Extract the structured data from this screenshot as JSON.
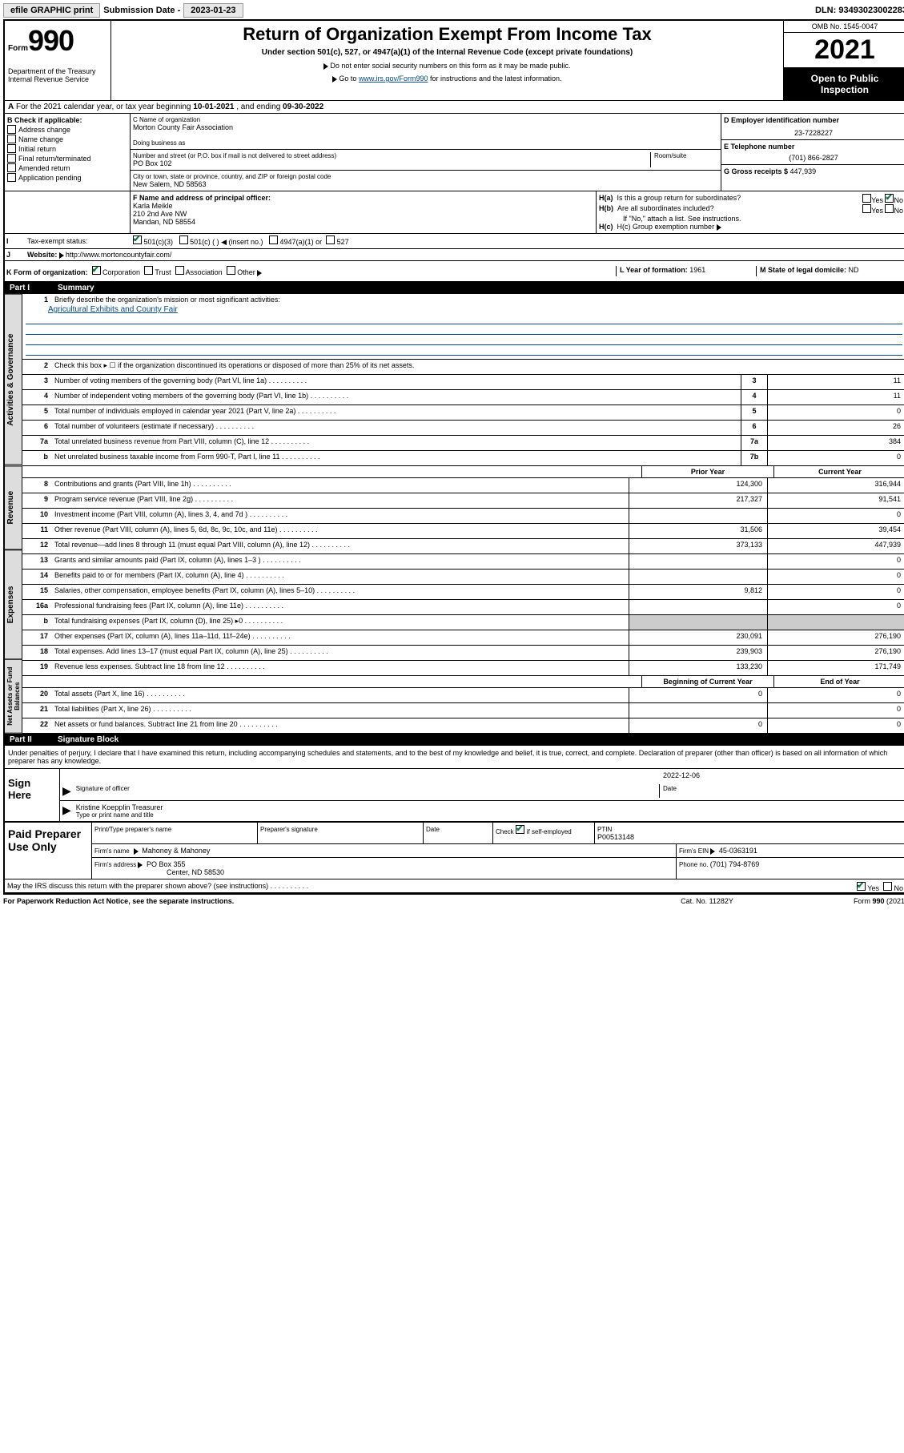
{
  "topbar": {
    "efile": "efile GRAPHIC print",
    "submission_label": "Submission Date - ",
    "submission_date": "2023-01-23",
    "dln_label": "DLN: ",
    "dln": "93493023002283"
  },
  "header": {
    "form_word": "Form",
    "form_num": "990",
    "dept": "Department of the Treasury\nInternal Revenue Service",
    "title": "Return of Organization Exempt From Income Tax",
    "subtitle": "Under section 501(c), 527, or 4947(a)(1) of the Internal Revenue Code (except private foundations)",
    "instr1": "Do not enter social security numbers on this form as it may be made public.",
    "instr2_pre": "Go to ",
    "instr2_link": "www.irs.gov/Form990",
    "instr2_post": " for instructions and the latest information.",
    "omb": "OMB No. 1545-0047",
    "year": "2021",
    "inspection": "Open to Public Inspection"
  },
  "line_a": {
    "prefix": "A",
    "text": "For the 2021 calendar year, or tax year beginning ",
    "begin": "10-01-2021",
    "mid": " , and ending ",
    "end": "09-30-2022"
  },
  "b": {
    "header": "B Check if applicable:",
    "items": [
      "Address change",
      "Name change",
      "Initial return",
      "Final return/terminated",
      "Amended return",
      "Application pending"
    ]
  },
  "c": {
    "name_label": "C Name of organization",
    "name": "Morton County Fair Association",
    "dba_label": "Doing business as",
    "street_label": "Number and street (or P.O. box if mail is not delivered to street address)",
    "room_label": "Room/suite",
    "street": "PO Box 102",
    "city_label": "City or town, state or province, country, and ZIP or foreign postal code",
    "city": "New Salem, ND  58563"
  },
  "d": {
    "label": "D Employer identification number",
    "ein": "23-7228227",
    "e_label": "E Telephone number",
    "phone": "(701) 866-2827",
    "g_label": "G Gross receipts $ ",
    "gross": "447,939"
  },
  "f": {
    "label": "F  Name and address of principal officer:",
    "name": "Karla Meikle",
    "addr1": "210 2nd Ave NW",
    "addr2": "Mandan, ND  58554"
  },
  "h": {
    "a_label": "H(a)  Is this a group return for subordinates?",
    "yes": "Yes",
    "no": "No",
    "b_label": "H(b)  Are all subordinates included?",
    "b_note": "If \"No,\" attach a list. See instructions.",
    "c_label": "H(c)  Group exemption number "
  },
  "i": {
    "label": "I",
    "text": "Tax-exempt status:",
    "opts": [
      "501(c)(3)",
      "501(c) (  ) ◀ (insert no.)",
      "4947(a)(1) or",
      "527"
    ]
  },
  "j": {
    "label": "J",
    "text": "Website: ",
    "url": "http://www.mortoncountyfair.com/"
  },
  "k": {
    "label": "K Form of organization:",
    "opts": [
      "Corporation",
      "Trust",
      "Association",
      "Other"
    ]
  },
  "l": {
    "label": "L Year of formation: ",
    "val": "1961"
  },
  "m": {
    "label": "M State of legal domicile: ",
    "val": "ND"
  },
  "part1": {
    "num": "Part I",
    "title": "Summary",
    "line1_label": "Briefly describe the organization's mission or most significant activities:",
    "line1_text": "Agricultural Exhibits and County Fair",
    "line2": "Check this box ▸ ☐  if the organization discontinued its operations or disposed of more than 25% of its net assets.",
    "rows_top": [
      {
        "n": "3",
        "label": "Number of voting members of the governing body (Part VI, line 1a)",
        "box": "3",
        "val": "11"
      },
      {
        "n": "4",
        "label": "Number of independent voting members of the governing body (Part VI, line 1b)",
        "box": "4",
        "val": "11"
      },
      {
        "n": "5",
        "label": "Total number of individuals employed in calendar year 2021 (Part V, line 2a)",
        "box": "5",
        "val": "0"
      },
      {
        "n": "6",
        "label": "Total number of volunteers (estimate if necessary)",
        "box": "6",
        "val": "26"
      },
      {
        "n": "7a",
        "label": "Total unrelated business revenue from Part VIII, column (C), line 12",
        "box": "7a",
        "val": "384"
      },
      {
        "n": "b",
        "label": "Net unrelated business taxable income from Form 990-T, Part I, line 11",
        "box": "7b",
        "val": "0"
      }
    ],
    "col_heads": {
      "prior": "Prior Year",
      "current": "Current Year"
    },
    "rows_two": [
      {
        "n": "8",
        "label": "Contributions and grants (Part VIII, line 1h)",
        "p": "124,300",
        "c": "316,944"
      },
      {
        "n": "9",
        "label": "Program service revenue (Part VIII, line 2g)",
        "p": "217,327",
        "c": "91,541"
      },
      {
        "n": "10",
        "label": "Investment income (Part VIII, column (A), lines 3, 4, and 7d )",
        "p": "",
        "c": "0"
      },
      {
        "n": "11",
        "label": "Other revenue (Part VIII, column (A), lines 5, 6d, 8c, 9c, 10c, and 11e)",
        "p": "31,506",
        "c": "39,454"
      },
      {
        "n": "12",
        "label": "Total revenue—add lines 8 through 11 (must equal Part VIII, column (A), line 12)",
        "p": "373,133",
        "c": "447,939"
      },
      {
        "n": "13",
        "label": "Grants and similar amounts paid (Part IX, column (A), lines 1–3 )",
        "p": "",
        "c": "0"
      },
      {
        "n": "14",
        "label": "Benefits paid to or for members (Part IX, column (A), line 4)",
        "p": "",
        "c": "0"
      },
      {
        "n": "15",
        "label": "Salaries, other compensation, employee benefits (Part IX, column (A), lines 5–10)",
        "p": "9,812",
        "c": "0"
      },
      {
        "n": "16a",
        "label": "Professional fundraising fees (Part IX, column (A), line 11e)",
        "p": "",
        "c": "0"
      },
      {
        "n": "b",
        "label": "Total fundraising expenses (Part IX, column (D), line 25) ▸0",
        "p": "GREY",
        "c": "GREY"
      },
      {
        "n": "17",
        "label": "Other expenses (Part IX, column (A), lines 11a–11d, 11f–24e)",
        "p": "230,091",
        "c": "276,190"
      },
      {
        "n": "18",
        "label": "Total expenses. Add lines 13–17 (must equal Part IX, column (A), line 25)",
        "p": "239,903",
        "c": "276,190"
      },
      {
        "n": "19",
        "label": "Revenue less expenses. Subtract line 18 from line 12",
        "p": "133,230",
        "c": "171,749"
      }
    ],
    "col_heads2": {
      "begin": "Beginning of Current Year",
      "end": "End of Year"
    },
    "rows_net": [
      {
        "n": "20",
        "label": "Total assets (Part X, line 16)",
        "p": "0",
        "c": "0"
      },
      {
        "n": "21",
        "label": "Total liabilities (Part X, line 26)",
        "p": "",
        "c": "0"
      },
      {
        "n": "22",
        "label": "Net assets or fund balances. Subtract line 21 from line 20",
        "p": "0",
        "c": "0"
      }
    ],
    "tabs": [
      "Activities & Governance",
      "Revenue",
      "Expenses",
      "Net Assets or Fund Balances"
    ]
  },
  "part2": {
    "num": "Part II",
    "title": "Signature Block",
    "decl": "Under penalties of perjury, I declare that I have examined this return, including accompanying schedules and statements, and to the best of my knowledge and belief, it is true, correct, and complete. Declaration of preparer (other than officer) is based on all information of which preparer has any knowledge.",
    "sign_here": "Sign Here",
    "sig_officer": "Signature of officer",
    "date_label": "Date",
    "date": "2022-12-06",
    "officer_name": "Kristine Koepplin  Treasurer",
    "type_name": "Type or print name and title",
    "paid": "Paid Preparer Use Only",
    "prep_name_h": "Print/Type preparer's name",
    "prep_sig_h": "Preparer's signature",
    "date_h": "Date",
    "check_if": "Check",
    "self_emp": "if self-employed",
    "ptin_h": "PTIN",
    "ptin": "P00513148",
    "firm_name_l": "Firm's name",
    "firm_name": "Mahoney & Mahoney",
    "firm_ein_l": "Firm's EIN ",
    "firm_ein": "45-0363191",
    "firm_addr_l": "Firm's address ",
    "firm_addr": "PO Box 355",
    "firm_city": "Center, ND  58530",
    "phone_l": "Phone no. ",
    "phone": "(701) 794-8769",
    "discuss": "May the IRS discuss this return with the preparer shown above? (see instructions)"
  },
  "footer": {
    "left": "For Paperwork Reduction Act Notice, see the separate instructions.",
    "mid": "Cat. No. 11282Y",
    "right": "Form 990 (2021)"
  }
}
